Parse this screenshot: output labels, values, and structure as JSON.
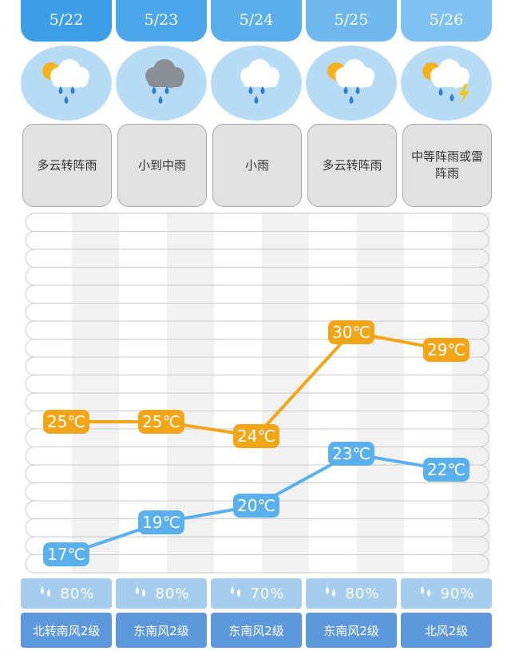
{
  "days": [
    {
      "date": "5/22",
      "icon": "sun-cloud-rain-icon",
      "condition": "多云转阵雨",
      "humidity": "80%",
      "wind": "北转南风2级",
      "high": 25,
      "low": 17,
      "high_label": "25℃",
      "low_label": "17℃"
    },
    {
      "date": "5/23",
      "icon": "dark-cloud-rain-icon",
      "condition": "小到中雨",
      "humidity": "80%",
      "wind": "东南风2级",
      "high": 25,
      "low": 19,
      "high_label": "25℃",
      "low_label": "19℃"
    },
    {
      "date": "5/24",
      "icon": "cloud-rain-icon",
      "condition": "小雨",
      "humidity": "70%",
      "wind": "东南风2级",
      "high": 24,
      "low": 20,
      "high_label": "24℃",
      "low_label": "20℃"
    },
    {
      "date": "5/25",
      "icon": "sun-cloud-rain-icon",
      "condition": "多云转阵雨",
      "humidity": "80%",
      "wind": "东南风2级",
      "high": 30,
      "low": 23,
      "high_label": "30℃",
      "low_label": "23℃"
    },
    {
      "date": "5/26",
      "icon": "sun-cloud-thunder-icon",
      "condition": "中等阵雨或雷阵雨",
      "humidity": "90%",
      "wind": "北风2级",
      "high": 29,
      "low": 22,
      "high_label": "29℃",
      "low_label": "22℃"
    }
  ],
  "chart_data": {
    "type": "line",
    "categories": [
      "5/22",
      "5/23",
      "5/24",
      "5/25",
      "5/26"
    ],
    "series": [
      {
        "values": [
          25,
          25,
          24,
          30,
          29
        ],
        "color": "#f2a516"
      },
      {
        "values": [
          17,
          19,
          20,
          23,
          22
        ],
        "color": "#5ab0ec"
      }
    ],
    "ylim": [
      15,
      33
    ]
  },
  "colors": {
    "date_tab": [
      "#3d9ee8",
      "#4ba6ea",
      "#5aaeec",
      "#6db8ee",
      "#7fc1f0"
    ],
    "icon_bg": "#b7dbf4",
    "high": "#f2a516",
    "low": "#5ab0ec",
    "humidity_bg": "#a6cdee",
    "wind_bg": "#5e98dc"
  }
}
